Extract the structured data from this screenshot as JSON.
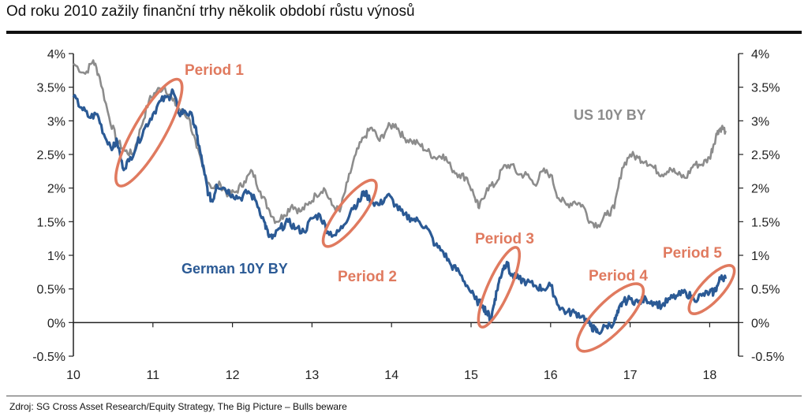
{
  "title": "Od roku 2010 zažily finanční trhy několik období růstu výnosů",
  "source": "Zdroj: SG Cross Asset Research/Equity Strategy, The Big Picture – Bulls beware",
  "colors": {
    "us": "#8c8c8c",
    "german": "#2b5a95",
    "period": "#e07a5f",
    "axis": "#222222"
  },
  "chart_data": {
    "type": "line",
    "xlim": [
      2010,
      2018.25
    ],
    "ylim": [
      -0.5,
      4
    ],
    "x_ticks": [
      "10",
      "11",
      "12",
      "13",
      "14",
      "15",
      "16",
      "17",
      "18"
    ],
    "y_ticks_left": [
      "4%",
      "3.5%",
      "3%",
      "2.5%",
      "2%",
      "1.5%",
      "1%",
      "0.5%",
      "0%",
      "-0.5%"
    ],
    "y_ticks_right": [
      "4%",
      "3.5%",
      "3%",
      "2.5%",
      "2%",
      "1.5%",
      "1%",
      "0.5%",
      "0%",
      "-0.5%"
    ],
    "series": [
      {
        "name": "US 10Y BY",
        "color": "#8c8c8c",
        "points": [
          [
            2010.0,
            3.85
          ],
          [
            2010.15,
            3.7
          ],
          [
            2010.25,
            3.9
          ],
          [
            2010.33,
            3.65
          ],
          [
            2010.45,
            3.05
          ],
          [
            2010.55,
            2.7
          ],
          [
            2010.65,
            2.55
          ],
          [
            2010.75,
            2.5
          ],
          [
            2010.85,
            2.9
          ],
          [
            2010.95,
            3.3
          ],
          [
            2011.05,
            3.45
          ],
          [
            2011.15,
            3.5
          ],
          [
            2011.25,
            3.3
          ],
          [
            2011.35,
            3.15
          ],
          [
            2011.45,
            3.05
          ],
          [
            2011.55,
            2.6
          ],
          [
            2011.65,
            2.2
          ],
          [
            2011.75,
            2.0
          ],
          [
            2011.85,
            2.05
          ],
          [
            2011.95,
            1.9
          ],
          [
            2012.05,
            1.95
          ],
          [
            2012.15,
            2.1
          ],
          [
            2012.25,
            2.25
          ],
          [
            2012.35,
            1.95
          ],
          [
            2012.45,
            1.7
          ],
          [
            2012.55,
            1.5
          ],
          [
            2012.65,
            1.6
          ],
          [
            2012.75,
            1.75
          ],
          [
            2012.85,
            1.65
          ],
          [
            2012.95,
            1.75
          ],
          [
            2013.05,
            1.9
          ],
          [
            2013.15,
            2.0
          ],
          [
            2013.25,
            1.75
          ],
          [
            2013.35,
            1.65
          ],
          [
            2013.45,
            2.1
          ],
          [
            2013.55,
            2.5
          ],
          [
            2013.65,
            2.75
          ],
          [
            2013.75,
            2.9
          ],
          [
            2013.85,
            2.7
          ],
          [
            2013.95,
            2.9
          ],
          [
            2014.05,
            2.95
          ],
          [
            2014.15,
            2.75
          ],
          [
            2014.25,
            2.7
          ],
          [
            2014.35,
            2.65
          ],
          [
            2014.45,
            2.55
          ],
          [
            2014.55,
            2.45
          ],
          [
            2014.65,
            2.5
          ],
          [
            2014.75,
            2.3
          ],
          [
            2014.85,
            2.2
          ],
          [
            2014.95,
            2.15
          ],
          [
            2015.05,
            1.85
          ],
          [
            2015.1,
            1.7
          ],
          [
            2015.2,
            2.0
          ],
          [
            2015.3,
            2.05
          ],
          [
            2015.4,
            2.3
          ],
          [
            2015.5,
            2.35
          ],
          [
            2015.6,
            2.2
          ],
          [
            2015.7,
            2.2
          ],
          [
            2015.8,
            2.05
          ],
          [
            2015.9,
            2.25
          ],
          [
            2016.0,
            2.2
          ],
          [
            2016.1,
            1.85
          ],
          [
            2016.2,
            1.75
          ],
          [
            2016.3,
            1.8
          ],
          [
            2016.4,
            1.75
          ],
          [
            2016.5,
            1.5
          ],
          [
            2016.6,
            1.45
          ],
          [
            2016.7,
            1.6
          ],
          [
            2016.8,
            1.7
          ],
          [
            2016.9,
            2.3
          ],
          [
            2017.0,
            2.5
          ],
          [
            2017.1,
            2.45
          ],
          [
            2017.2,
            2.4
          ],
          [
            2017.3,
            2.3
          ],
          [
            2017.4,
            2.2
          ],
          [
            2017.5,
            2.3
          ],
          [
            2017.6,
            2.2
          ],
          [
            2017.7,
            2.15
          ],
          [
            2017.8,
            2.35
          ],
          [
            2017.9,
            2.35
          ],
          [
            2018.0,
            2.45
          ],
          [
            2018.05,
            2.65
          ],
          [
            2018.1,
            2.85
          ],
          [
            2018.15,
            2.9
          ],
          [
            2018.2,
            2.85
          ]
        ]
      },
      {
        "name": "German 10Y BY",
        "color": "#2b5a95",
        "points": [
          [
            2010.0,
            3.35
          ],
          [
            2010.1,
            3.2
          ],
          [
            2010.2,
            3.05
          ],
          [
            2010.3,
            3.1
          ],
          [
            2010.4,
            2.75
          ],
          [
            2010.5,
            2.6
          ],
          [
            2010.55,
            2.7
          ],
          [
            2010.62,
            2.3
          ],
          [
            2010.7,
            2.4
          ],
          [
            2010.8,
            2.65
          ],
          [
            2010.9,
            2.9
          ],
          [
            2011.0,
            3.1
          ],
          [
            2011.1,
            3.3
          ],
          [
            2011.2,
            3.35
          ],
          [
            2011.25,
            3.45
          ],
          [
            2011.33,
            3.1
          ],
          [
            2011.4,
            3.15
          ],
          [
            2011.5,
            3.05
          ],
          [
            2011.55,
            2.8
          ],
          [
            2011.6,
            2.5
          ],
          [
            2011.65,
            2.2
          ],
          [
            2011.7,
            1.9
          ],
          [
            2011.75,
            1.8
          ],
          [
            2011.8,
            2.05
          ],
          [
            2011.9,
            2.0
          ],
          [
            2012.0,
            1.9
          ],
          [
            2012.1,
            1.85
          ],
          [
            2012.2,
            1.95
          ],
          [
            2012.3,
            1.8
          ],
          [
            2012.4,
            1.5
          ],
          [
            2012.45,
            1.3
          ],
          [
            2012.5,
            1.25
          ],
          [
            2012.6,
            1.4
          ],
          [
            2012.7,
            1.5
          ],
          [
            2012.8,
            1.4
          ],
          [
            2012.9,
            1.35
          ],
          [
            2013.0,
            1.55
          ],
          [
            2013.1,
            1.6
          ],
          [
            2013.2,
            1.35
          ],
          [
            2013.3,
            1.3
          ],
          [
            2013.4,
            1.45
          ],
          [
            2013.5,
            1.7
          ],
          [
            2013.6,
            1.8
          ],
          [
            2013.65,
            1.95
          ],
          [
            2013.75,
            1.8
          ],
          [
            2013.85,
            1.75
          ],
          [
            2013.95,
            1.9
          ],
          [
            2014.05,
            1.75
          ],
          [
            2014.15,
            1.6
          ],
          [
            2014.25,
            1.55
          ],
          [
            2014.35,
            1.5
          ],
          [
            2014.45,
            1.4
          ],
          [
            2014.55,
            1.15
          ],
          [
            2014.65,
            1.05
          ],
          [
            2014.75,
            0.85
          ],
          [
            2014.85,
            0.75
          ],
          [
            2014.95,
            0.55
          ],
          [
            2015.05,
            0.35
          ],
          [
            2015.15,
            0.25
          ],
          [
            2015.2,
            0.15
          ],
          [
            2015.25,
            0.05
          ],
          [
            2015.3,
            0.35
          ],
          [
            2015.35,
            0.6
          ],
          [
            2015.4,
            0.8
          ],
          [
            2015.45,
            0.9
          ],
          [
            2015.5,
            0.7
          ],
          [
            2015.6,
            0.65
          ],
          [
            2015.7,
            0.6
          ],
          [
            2015.8,
            0.55
          ],
          [
            2015.9,
            0.5
          ],
          [
            2016.0,
            0.55
          ],
          [
            2016.1,
            0.25
          ],
          [
            2016.2,
            0.15
          ],
          [
            2016.3,
            0.15
          ],
          [
            2016.4,
            0.1
          ],
          [
            2016.5,
            -0.05
          ],
          [
            2016.55,
            -0.1
          ],
          [
            2016.6,
            -0.15
          ],
          [
            2016.7,
            -0.05
          ],
          [
            2016.8,
            0.0
          ],
          [
            2016.85,
            0.15
          ],
          [
            2016.9,
            0.3
          ],
          [
            2017.0,
            0.35
          ],
          [
            2017.1,
            0.3
          ],
          [
            2017.2,
            0.35
          ],
          [
            2017.3,
            0.3
          ],
          [
            2017.4,
            0.25
          ],
          [
            2017.5,
            0.35
          ],
          [
            2017.6,
            0.4
          ],
          [
            2017.7,
            0.45
          ],
          [
            2017.8,
            0.35
          ],
          [
            2017.9,
            0.4
          ],
          [
            2018.0,
            0.45
          ],
          [
            2018.05,
            0.45
          ],
          [
            2018.1,
            0.55
          ],
          [
            2018.15,
            0.7
          ],
          [
            2018.2,
            0.65
          ]
        ]
      }
    ],
    "labels": {
      "us": "US 10Y BY",
      "german": "German 10Y BY",
      "periods": [
        "Period 1",
        "Period 2",
        "Period 3",
        "Period 4",
        "Period 5"
      ]
    },
    "periods": [
      {
        "name": "Period 1",
        "x0": 2010.6,
        "x1": 2011.3,
        "y0": 2.1,
        "y1": 3.55
      },
      {
        "name": "Period 2",
        "x0": 2013.2,
        "x1": 2013.75,
        "y0": 1.2,
        "y1": 2.05
      },
      {
        "name": "Period 3",
        "x0": 2015.15,
        "x1": 2015.55,
        "y0": 0.0,
        "y1": 1.05
      },
      {
        "name": "Period 4",
        "x0": 2016.4,
        "x1": 2017.1,
        "y0": -0.35,
        "y1": 0.5
      },
      {
        "name": "Period 5",
        "x0": 2017.8,
        "x1": 2018.25,
        "y0": 0.2,
        "y1": 0.78
      }
    ],
    "grid": false
  }
}
